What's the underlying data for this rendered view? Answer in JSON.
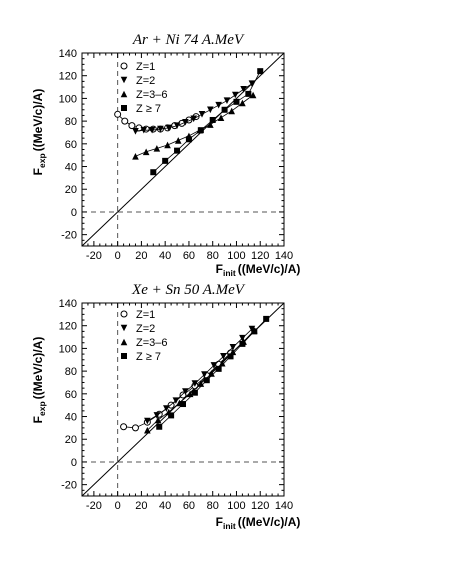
{
  "chart_data": [
    {
      "type": "scatter",
      "title": "Ar + Ni 74 A.MeV",
      "xlabel_main": "F",
      "xlabel_sub": "init",
      "xlabel_unit": "((MeV/c)/A)",
      "ylabel_main": "F",
      "ylabel_sub": "exp",
      "ylabel_unit": "((MeV/c)/A)",
      "xlim": [
        -30,
        140
      ],
      "ylim": [
        -30,
        140
      ],
      "x_ticks": [
        "-20",
        "0",
        "20",
        "40",
        "60",
        "80",
        "100",
        "120",
        "140"
      ],
      "y_ticks": [
        "-20",
        "0",
        "20",
        "40",
        "60",
        "80",
        "100",
        "120",
        "140"
      ],
      "legend": [
        "Z=1",
        "Z=2",
        "Z=3–6",
        "Z  ≥ 7"
      ],
      "series": [
        {
          "name": "Z=1",
          "marker": "open-circle",
          "x": [
            0,
            6,
            12,
            18,
            24,
            30,
            36,
            42,
            48,
            54,
            60,
            66
          ],
          "y": [
            86,
            80,
            76,
            74,
            73,
            73,
            73,
            74,
            76,
            78,
            81,
            84
          ]
        },
        {
          "name": "Z=2",
          "marker": "triangle-down",
          "x": [
            15,
            22,
            29,
            36,
            43,
            50,
            57,
            64,
            71,
            78,
            85,
            92,
            99,
            106,
            113
          ],
          "y": [
            71,
            72,
            72,
            73,
            74,
            76,
            79,
            82,
            86,
            90,
            94,
            98,
            103,
            108,
            113
          ]
        },
        {
          "name": "Z=3–6",
          "marker": "triangle-up",
          "x": [
            15,
            24,
            33,
            42,
            51,
            60,
            69,
            78,
            87,
            96,
            105,
            114
          ],
          "y": [
            49,
            53,
            56,
            59,
            63,
            67,
            72,
            77,
            83,
            89,
            96,
            103
          ]
        },
        {
          "name": "Z  ≥ 7",
          "marker": "square",
          "x": [
            30,
            40,
            50,
            60,
            70,
            80,
            90,
            100,
            110,
            120
          ],
          "y": [
            35,
            45,
            54,
            64,
            72,
            81,
            90,
            97,
            104,
            124
          ]
        }
      ]
    },
    {
      "type": "scatter",
      "title": "Xe + Sn 50 A.MeV",
      "xlabel_main": "F",
      "xlabel_sub": "init",
      "xlabel_unit": "((MeV/c)/A)",
      "ylabel_main": "F",
      "ylabel_sub": "exp",
      "ylabel_unit": "((MeV/c)/A)",
      "xlim": [
        -30,
        140
      ],
      "ylim": [
        -30,
        140
      ],
      "x_ticks": [
        "-20",
        "0",
        "20",
        "40",
        "60",
        "80",
        "100",
        "120",
        "140"
      ],
      "y_ticks": [
        "-20",
        "0",
        "20",
        "40",
        "60",
        "80",
        "100",
        "120",
        "140"
      ],
      "legend": [
        "Z=1",
        "Z=2",
        "Z=3–6",
        "Z  ≥ 7"
      ],
      "series": [
        {
          "name": "Z=1",
          "marker": "open-circle",
          "x": [
            5,
            15,
            25,
            35,
            45,
            55,
            65,
            75,
            85,
            95
          ],
          "y": [
            31,
            30,
            35,
            42,
            50,
            59,
            67,
            76,
            86,
            96
          ]
        },
        {
          "name": "Z=2",
          "marker": "triangle-down",
          "x": [
            25,
            33,
            41,
            49,
            57,
            65,
            73,
            81,
            89,
            97,
            105,
            113
          ],
          "y": [
            36,
            41,
            47,
            54,
            62,
            69,
            77,
            85,
            93,
            101,
            109,
            117
          ]
        },
        {
          "name": "Z=3–6",
          "marker": "triangle-up",
          "x": [
            25,
            34,
            43,
            52,
            61,
            70,
            79,
            88,
            97,
            106,
            115
          ],
          "y": [
            28,
            37,
            44,
            52,
            60,
            69,
            78,
            87,
            97,
            106,
            116
          ]
        },
        {
          "name": "Z  ≥ 7",
          "marker": "square",
          "x": [
            35,
            45,
            55,
            65,
            75,
            85,
            95,
            105,
            115,
            125
          ],
          "y": [
            31,
            41,
            51,
            61,
            72,
            82,
            93,
            104,
            115,
            126
          ]
        }
      ]
    }
  ]
}
